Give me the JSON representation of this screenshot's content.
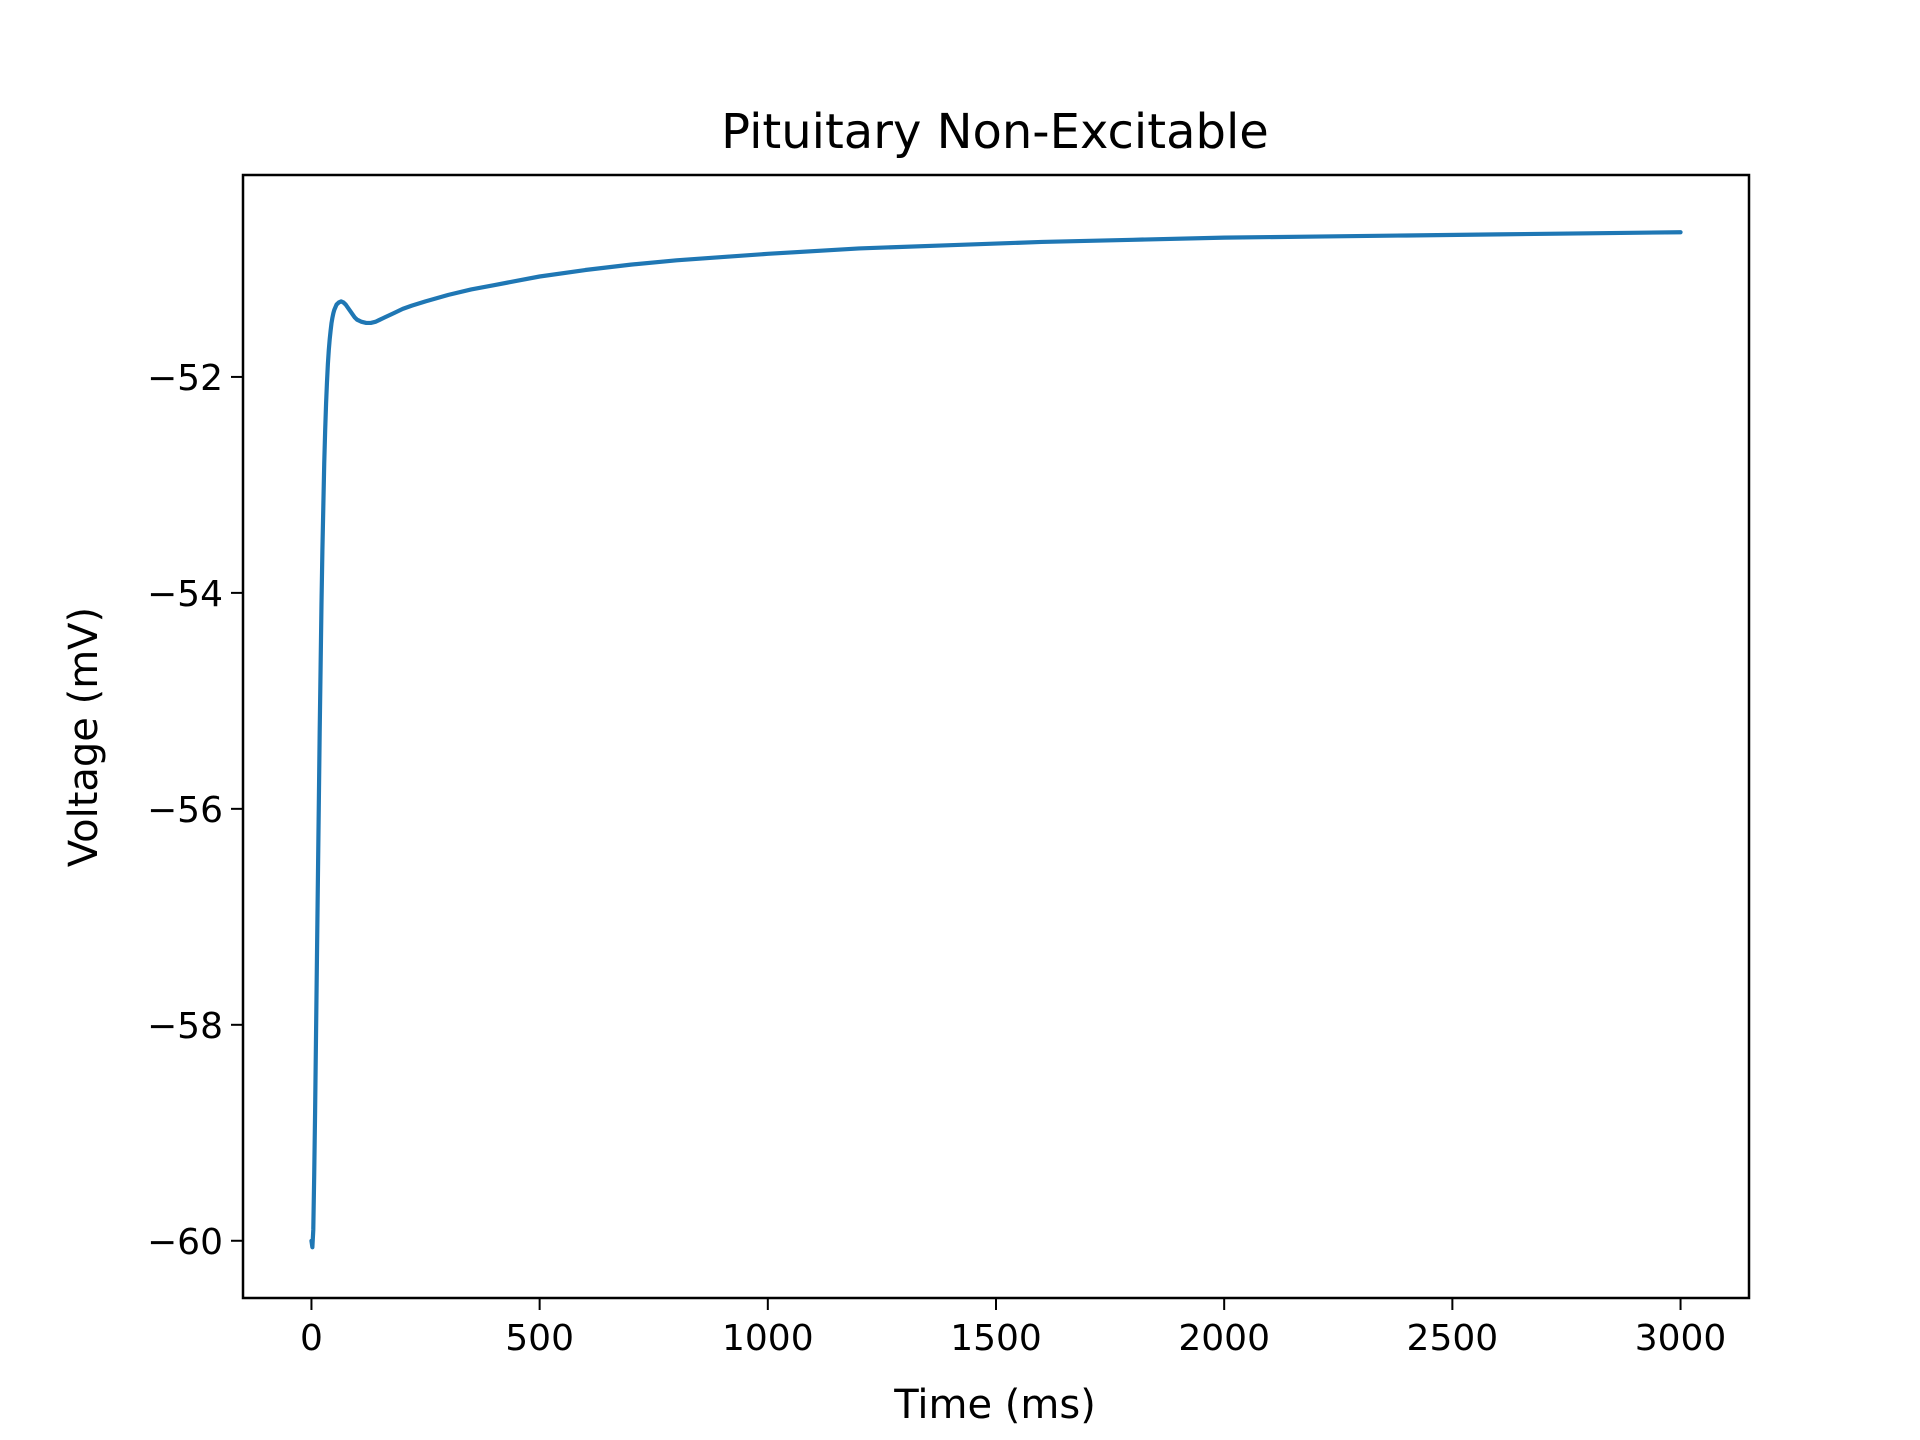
{
  "chart_data": {
    "type": "line",
    "title": "Pituitary Non-Excitable",
    "xlabel": "Time (ms)",
    "ylabel": "Voltage (mV)",
    "xlim": [
      -150,
      3150
    ],
    "ylim": [
      -60.53,
      -50.13
    ],
    "xticks": [
      0,
      500,
      1000,
      1500,
      2000,
      2500,
      3000
    ],
    "xtick_labels": [
      "0",
      "500",
      "1000",
      "1500",
      "2000",
      "2500",
      "3000"
    ],
    "yticks": [
      -60,
      -58,
      -56,
      -54,
      -52
    ],
    "ytick_labels": [
      "−60",
      "−58",
      "−56",
      "−54",
      "−52"
    ],
    "grid": false,
    "line_color": "#1f77b4",
    "series": [
      {
        "x": [
          0,
          2,
          4,
          6,
          8,
          10,
          12,
          14,
          16,
          18,
          20,
          22,
          24,
          26,
          28,
          30,
          32,
          34,
          36,
          38,
          40,
          42,
          44,
          46,
          48,
          50,
          55,
          60,
          65,
          70,
          75,
          80,
          85,
          90,
          95,
          100,
          110,
          120,
          130,
          140,
          150,
          160,
          170,
          180,
          200,
          220,
          250,
          300,
          350,
          400,
          450,
          500,
          600,
          700,
          800,
          900,
          1000,
          1200,
          1400,
          1600,
          1800,
          2000,
          2200,
          2400,
          2600,
          2800,
          3000
        ],
        "y": [
          -60.0,
          -60.06,
          -59.9,
          -59.4,
          -58.8,
          -58.1,
          -57.4,
          -56.7,
          -56.0,
          -55.3,
          -54.7,
          -54.1,
          -53.6,
          -53.2,
          -52.8,
          -52.5,
          -52.25,
          -52.05,
          -51.88,
          -51.75,
          -51.65,
          -51.57,
          -51.5,
          -51.45,
          -51.41,
          -51.38,
          -51.33,
          -51.31,
          -51.3,
          -51.31,
          -51.33,
          -51.36,
          -51.39,
          -51.42,
          -51.45,
          -51.47,
          -51.49,
          -51.5,
          -51.5,
          -51.49,
          -51.47,
          -51.45,
          -51.43,
          -51.41,
          -51.37,
          -51.34,
          -51.3,
          -51.24,
          -51.19,
          -51.15,
          -51.11,
          -51.07,
          -51.01,
          -50.96,
          -50.92,
          -50.89,
          -50.86,
          -50.81,
          -50.78,
          -50.75,
          -50.73,
          -50.71,
          -50.7,
          -50.69,
          -50.68,
          -50.67,
          -50.66
        ]
      }
    ]
  }
}
